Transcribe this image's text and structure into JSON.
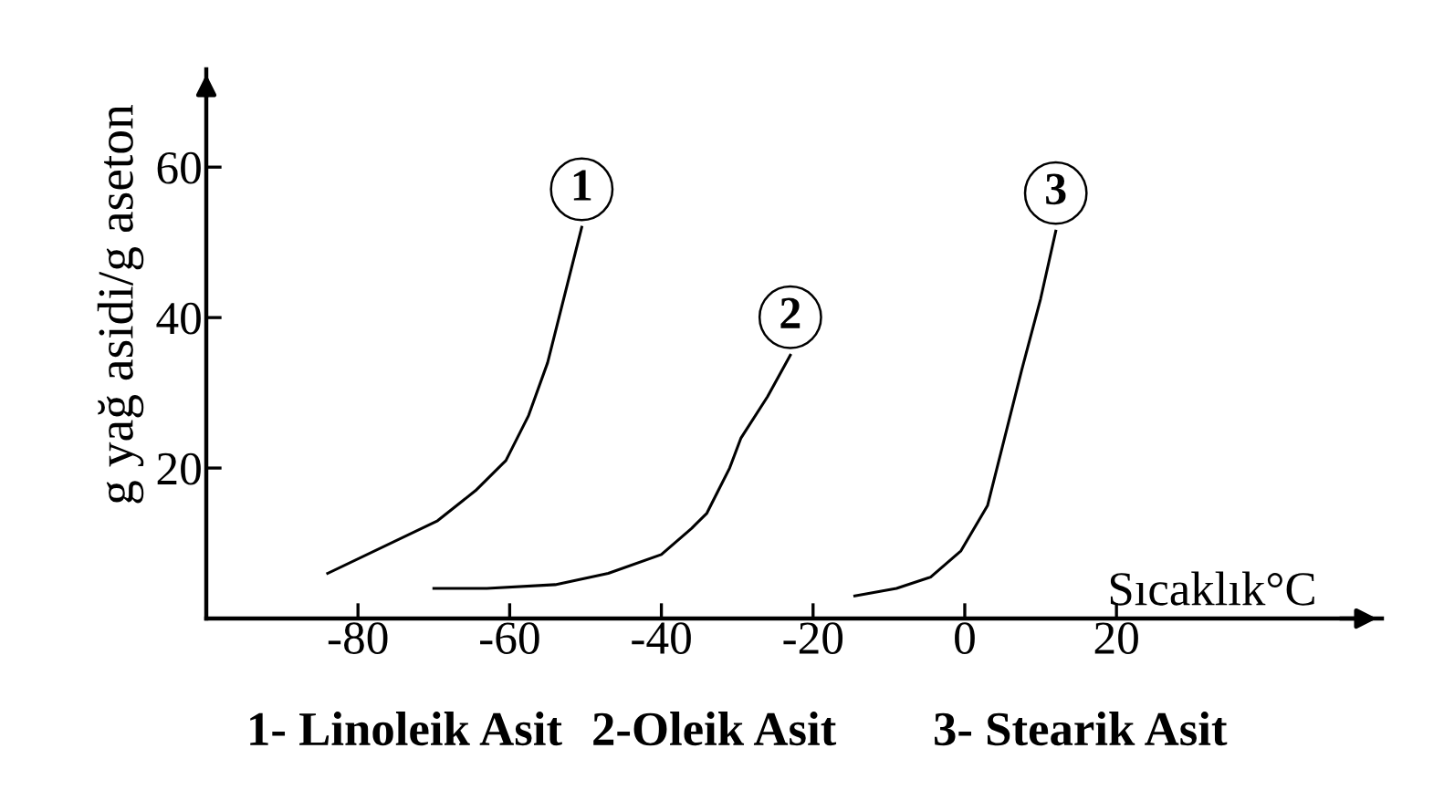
{
  "chart_data": {
    "type": "line",
    "xlabel": "Sıcaklık°C",
    "ylabel": "g yağ asidi/g aseton",
    "xlim": [
      -100,
      55
    ],
    "ylim": [
      0,
      73
    ],
    "xticks": [
      -80,
      -60,
      -40,
      -20,
      0,
      20
    ],
    "yticks": [
      20,
      40,
      60
    ],
    "grid": false,
    "marker": "none",
    "line_style": "solid",
    "series": [
      {
        "color": "#000000",
        "x": [
          -84,
          -69.5,
          -64.5,
          -60.5,
          -57.5,
          -55,
          -53.5,
          -51.5,
          -50.5
        ],
        "values": [
          6,
          13,
          17,
          21,
          27,
          34,
          40,
          48,
          52
        ]
      },
      {
        "color": "#000000",
        "x": [
          -70,
          -63,
          -54,
          -47,
          -40,
          -36,
          -34,
          -32.5,
          -31,
          -29.5,
          -26,
          -23
        ],
        "values": [
          4,
          4,
          4.5,
          6,
          8.5,
          12,
          14,
          17,
          20,
          24,
          29.5,
          35
        ]
      },
      {
        "color": "#000000",
        "x": [
          -14.5,
          -9,
          -4.5,
          -0.5,
          3,
          5,
          7.5,
          10,
          12
        ],
        "values": [
          3,
          4,
          5.5,
          9,
          15,
          23,
          33,
          42.5,
          51.5
        ]
      }
    ],
    "annotations": [
      {
        "text": "1",
        "x": -50.5,
        "y": 52
      },
      {
        "text": "2",
        "x": -23,
        "y": 35
      },
      {
        "text": "3",
        "x": 12,
        "y": 51.5
      },
      "1- Linoleik Asit",
      "2-Oleik Asit",
      "3- Stearik Asit"
    ]
  }
}
